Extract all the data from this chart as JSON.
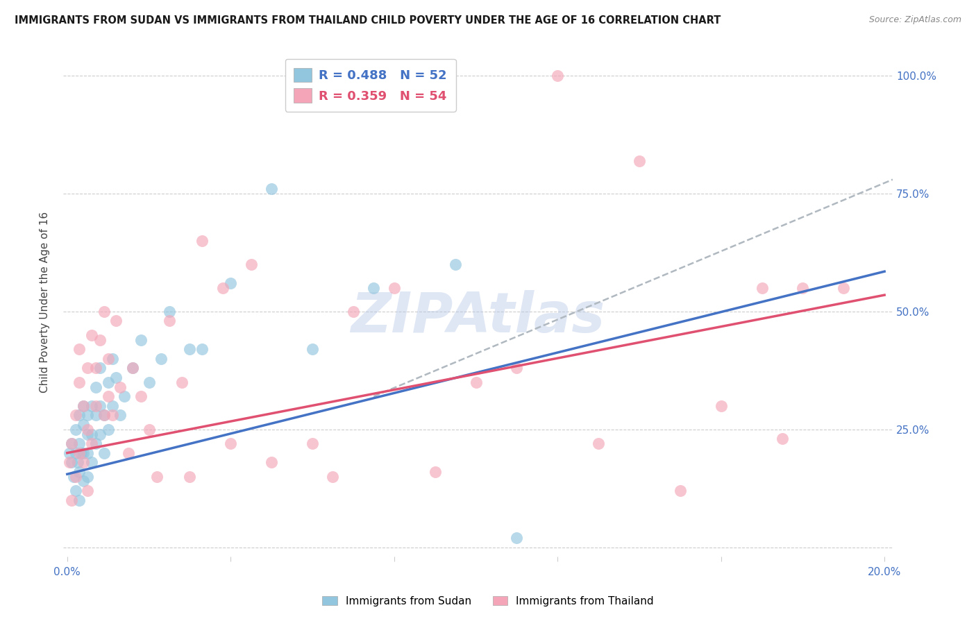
{
  "title": "IMMIGRANTS FROM SUDAN VS IMMIGRANTS FROM THAILAND CHILD POVERTY UNDER THE AGE OF 16 CORRELATION CHART",
  "source": "Source: ZipAtlas.com",
  "ylabel": "Child Poverty Under the Age of 16",
  "xlim": [
    -0.001,
    0.202
  ],
  "ylim": [
    -0.02,
    1.06
  ],
  "x_ticks": [
    0.0,
    0.04,
    0.08,
    0.12,
    0.16,
    0.2
  ],
  "x_tick_labels": [
    "0.0%",
    "",
    "",
    "",
    "",
    "20.0%"
  ],
  "y_ticks": [
    0.0,
    0.25,
    0.5,
    0.75,
    1.0
  ],
  "y_tick_labels_right": [
    "",
    "25.0%",
    "50.0%",
    "75.0%",
    "100.0%"
  ],
  "sudan_R": 0.488,
  "sudan_N": 52,
  "thailand_R": 0.359,
  "thailand_N": 54,
  "sudan_color": "#92c5de",
  "thailand_color": "#f4a6b8",
  "sudan_line_color": "#4472c4",
  "thailand_line_color": "#e05070",
  "watermark": "ZIPAtlas",
  "watermark_color_r": 180,
  "watermark_color_g": 200,
  "watermark_color_b": 230,
  "sudan_x": [
    0.0005,
    0.001,
    0.001,
    0.0015,
    0.002,
    0.002,
    0.002,
    0.0025,
    0.003,
    0.003,
    0.003,
    0.003,
    0.0035,
    0.004,
    0.004,
    0.004,
    0.004,
    0.005,
    0.005,
    0.005,
    0.005,
    0.006,
    0.006,
    0.006,
    0.007,
    0.007,
    0.007,
    0.008,
    0.008,
    0.008,
    0.009,
    0.009,
    0.01,
    0.01,
    0.011,
    0.011,
    0.012,
    0.013,
    0.014,
    0.016,
    0.018,
    0.02,
    0.023,
    0.025,
    0.03,
    0.033,
    0.04,
    0.05,
    0.06,
    0.075,
    0.095,
    0.11
  ],
  "sudan_y": [
    0.2,
    0.18,
    0.22,
    0.15,
    0.12,
    0.2,
    0.25,
    0.18,
    0.1,
    0.16,
    0.22,
    0.28,
    0.2,
    0.14,
    0.2,
    0.26,
    0.3,
    0.15,
    0.2,
    0.24,
    0.28,
    0.18,
    0.24,
    0.3,
    0.22,
    0.28,
    0.34,
    0.24,
    0.3,
    0.38,
    0.2,
    0.28,
    0.25,
    0.35,
    0.3,
    0.4,
    0.36,
    0.28,
    0.32,
    0.38,
    0.44,
    0.35,
    0.4,
    0.5,
    0.42,
    0.42,
    0.56,
    0.76,
    0.42,
    0.55,
    0.6,
    0.02
  ],
  "thailand_x": [
    0.0005,
    0.001,
    0.001,
    0.002,
    0.002,
    0.003,
    0.003,
    0.003,
    0.004,
    0.004,
    0.005,
    0.005,
    0.005,
    0.006,
    0.006,
    0.007,
    0.007,
    0.008,
    0.009,
    0.009,
    0.01,
    0.01,
    0.011,
    0.012,
    0.013,
    0.015,
    0.016,
    0.018,
    0.02,
    0.022,
    0.025,
    0.028,
    0.03,
    0.033,
    0.038,
    0.04,
    0.045,
    0.05,
    0.06,
    0.065,
    0.07,
    0.08,
    0.09,
    0.1,
    0.11,
    0.12,
    0.13,
    0.14,
    0.15,
    0.16,
    0.17,
    0.175,
    0.18,
    0.19
  ],
  "thailand_y": [
    0.18,
    0.1,
    0.22,
    0.15,
    0.28,
    0.2,
    0.35,
    0.42,
    0.18,
    0.3,
    0.12,
    0.25,
    0.38,
    0.22,
    0.45,
    0.3,
    0.38,
    0.44,
    0.28,
    0.5,
    0.32,
    0.4,
    0.28,
    0.48,
    0.34,
    0.2,
    0.38,
    0.32,
    0.25,
    0.15,
    0.48,
    0.35,
    0.15,
    0.65,
    0.55,
    0.22,
    0.6,
    0.18,
    0.22,
    0.15,
    0.5,
    0.55,
    0.16,
    0.35,
    0.38,
    1.0,
    0.22,
    0.82,
    0.12,
    0.3,
    0.55,
    0.23,
    0.55,
    0.55
  ]
}
